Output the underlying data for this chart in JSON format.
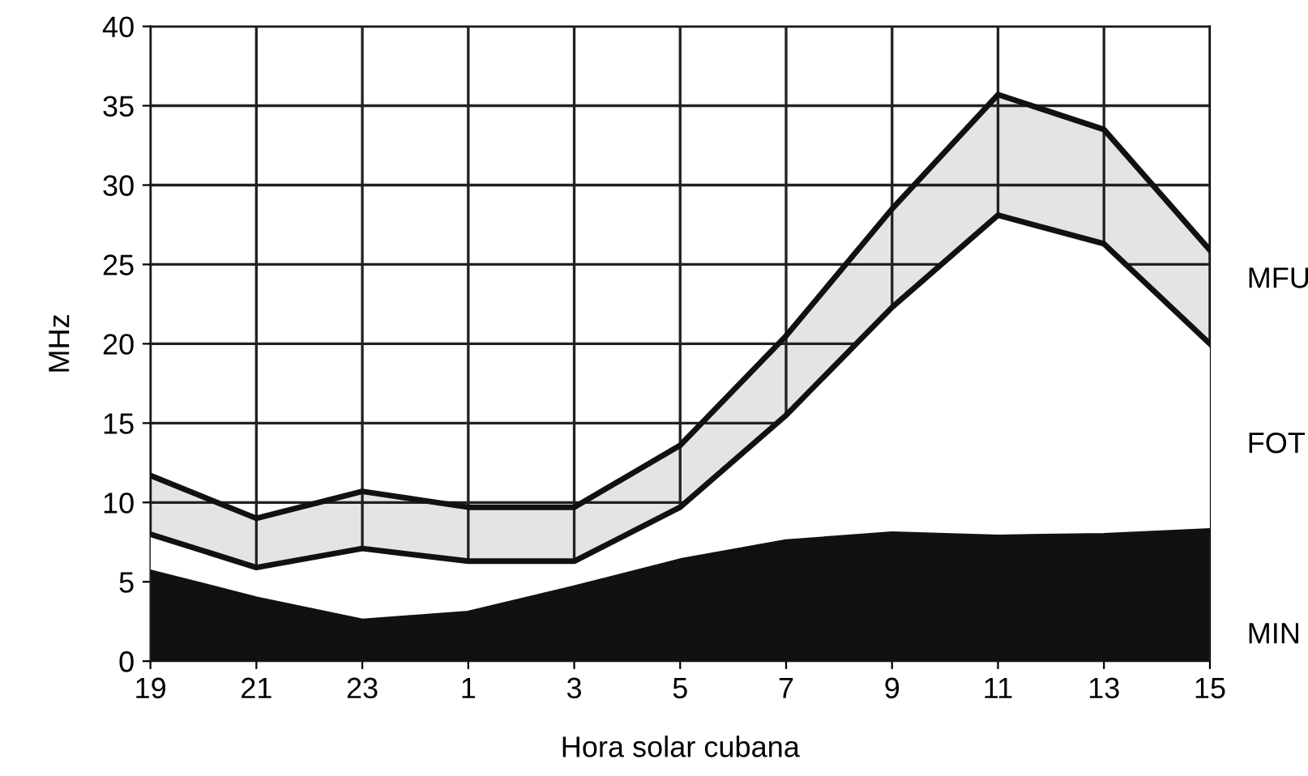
{
  "chart_data": {
    "type": "area",
    "xlabel": "Hora solar cubana",
    "ylabel": "MHz",
    "categories": [
      "19",
      "21",
      "23",
      "1",
      "3",
      "5",
      "7",
      "9",
      "11",
      "13",
      "15"
    ],
    "series": [
      {
        "name": "MFU",
        "color": "#e4e4e4",
        "values": [
          11.7,
          9.0,
          10.7,
          9.7,
          9.7,
          13.6,
          20.5,
          28.5,
          35.7,
          33.5,
          25.9
        ]
      },
      {
        "name": "FOT",
        "color": "#ffffff",
        "values": [
          8.0,
          5.9,
          7.1,
          6.3,
          6.3,
          9.7,
          15.5,
          22.3,
          28.1,
          26.3,
          20.0
        ]
      },
      {
        "name": "MIN",
        "color": "#111111",
        "values": [
          5.6,
          3.9,
          2.5,
          3.0,
          4.6,
          6.3,
          7.5,
          8.0,
          7.8,
          7.9,
          8.2
        ]
      }
    ],
    "ylim": [
      0,
      40
    ],
    "yticks": [
      0,
      5,
      10,
      15,
      20,
      25,
      30,
      35,
      40
    ],
    "grid": true
  }
}
